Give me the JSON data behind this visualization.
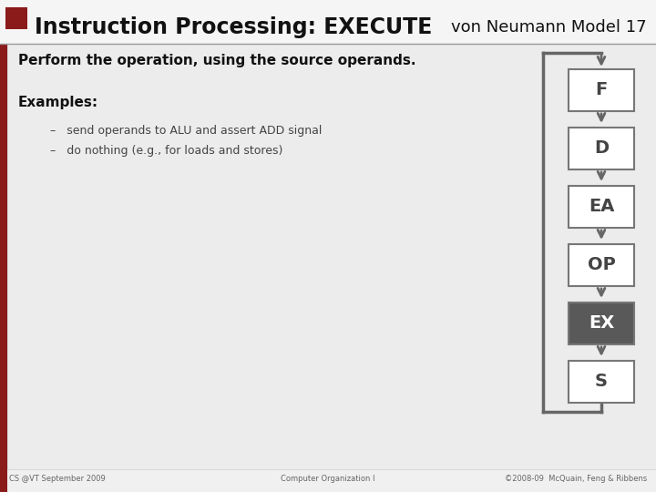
{
  "title_left": "Instruction Processing: EXECUTE",
  "title_right": "von Neumann Model 17",
  "subtitle": "Perform the operation, using the source operands.",
  "examples_label": "Examples:",
  "bullet1": "send operands to ALU and assert ADD signal",
  "bullet2": "do nothing (e.g., for loads and stores)",
  "footer_left": "CS @VT September 2009",
  "footer_center": "Computer Organization I",
  "footer_right": "©2008-09  McQuain, Feng & Ribbens",
  "bg_color": "#f0f0f0",
  "content_bg": "#f0f0f0",
  "title_bg": "#f0f0f0",
  "box_bg": "#ffffff",
  "box_border": "#777777",
  "active_box_bg": "#595959",
  "active_box_fg": "#ffffff",
  "inactive_box_fg": "#444444",
  "title_bar_color": "#8B1A1A",
  "red_stripe_color": "#8B1A1A",
  "arrow_color": "#666666",
  "loop_color": "#666666",
  "boxes": [
    "F",
    "D",
    "EA",
    "OP",
    "EX",
    "S"
  ],
  "active_box": "EX",
  "figsize": [
    7.2,
    5.4
  ],
  "dpi": 100
}
